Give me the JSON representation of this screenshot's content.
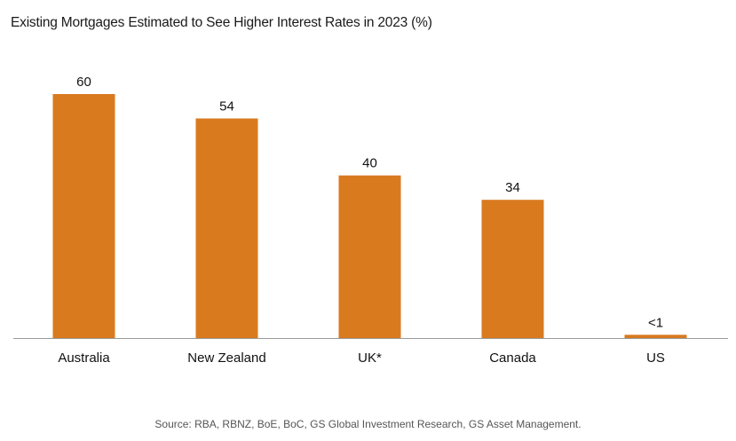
{
  "chart_data": {
    "type": "bar",
    "title": "Existing Mortgages Estimated to See Higher Interest Rates in 2023 (%)",
    "xlabel": "",
    "ylabel": "",
    "categories": [
      "Australia",
      "New Zealand",
      "UK*",
      "Canada",
      "US"
    ],
    "values": [
      60,
      54,
      40,
      34,
      0.8
    ],
    "data_labels": [
      "60",
      "54",
      "40",
      "34",
      "<1"
    ],
    "ylim": [
      0,
      60
    ],
    "grid": false,
    "legend": "none",
    "bar_color": "#D97A1F",
    "source": "Source: RBA, RBNZ, BoE, BoC, GS Global Investment Research, GS Asset Management."
  }
}
